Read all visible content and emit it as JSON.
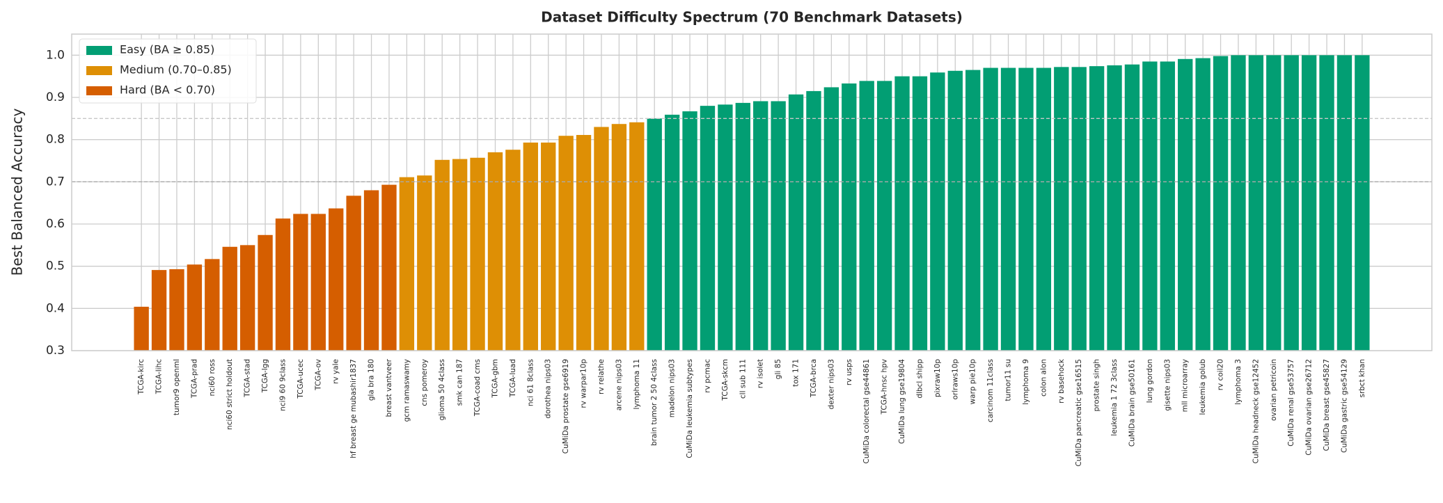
{
  "chart_data": {
    "type": "bar",
    "title": "Dataset Difficulty Spectrum (70 Benchmark Datasets)",
    "y_label": "Best Balanced Accuracy",
    "categories": [
      "TCGA-kirc",
      "TCGA-lihc",
      "tumor9 openml",
      "TCGA-prad",
      "nci60 ross",
      "nci60 strict holdout",
      "TCGA-stad",
      "TCGA-lgg",
      "nci9 60 9class",
      "TCGA-ucec",
      "TCGA-ov",
      "rv yale",
      "hf breast ge mubashir1837",
      "gla bra 180",
      "breast vantveer",
      "gcm ramaswamy",
      "cns pomeroy",
      "glioma 50 4class",
      "smk can 187",
      "TCGA-coad cms",
      "TCGA-gbm",
      "TCGA-luad",
      "nci 61 8class",
      "dorothea nips03",
      "CuMiDa prostate gse6919",
      "rv warpar10p",
      "rv relathe",
      "arcene nips03",
      "lymphoma 11",
      "brain tumor 2 50 4class",
      "madelon nips03",
      "CuMiDa leukemia subtypes",
      "rv pcmac",
      "TCGA-skcm",
      "cll sub 111",
      "rv isolet",
      "gli 85",
      "tox 171",
      "TCGA-brca",
      "dexter nips03",
      "rv usps",
      "CuMiDa colorectal gse44861",
      "TCGA-hnsc hpv",
      "CuMiDa lung gse19804",
      "dlbcl shipp",
      "pixraw10p",
      "orlraws10p",
      "warp pie10p",
      "carcinom 11class",
      "tumor11 su",
      "lymphoma 9",
      "colon alon",
      "rv basehock",
      "CuMiDa pancreatic gse16515",
      "prostate singh",
      "leukemia 1 72 3class",
      "CuMiDa brain gse50161",
      "lung gordon",
      "gisette nips03",
      "mll microarray",
      "leukemia golub",
      "rv coil20",
      "lymphoma 3",
      "CuMiDa headneck gse12452",
      "ovarian petricoin",
      "CuMiDa renal gse53757",
      "CuMiDa ovarian gse26712",
      "CuMiDa breast gse45827",
      "CuMiDa gastric gse54129",
      "srbct khan"
    ],
    "series": [
      {
        "name": "Easy (BA ≥ 0.85)",
        "color": "#029e73",
        "values": [
          null,
          null,
          null,
          null,
          null,
          null,
          null,
          null,
          null,
          null,
          null,
          null,
          null,
          null,
          null,
          null,
          null,
          null,
          null,
          null,
          null,
          null,
          null,
          null,
          null,
          null,
          null,
          null,
          null,
          0.85,
          0.859,
          0.867,
          0.88,
          0.883,
          0.887,
          0.891,
          0.891,
          0.907,
          0.915,
          0.924,
          0.933,
          0.939,
          0.939,
          0.95,
          0.95,
          0.959,
          0.963,
          0.965,
          0.97,
          0.97,
          0.97,
          0.97,
          0.972,
          0.972,
          0.974,
          0.976,
          0.978,
          0.985,
          0.985,
          0.991,
          0.993,
          0.998,
          1.0,
          1.0,
          1.0,
          1.0,
          1.0,
          1.0,
          1.0,
          1.0
        ]
      },
      {
        "name": "Medium (0.70–0.85)",
        "color": "#de8f05",
        "values": [
          null,
          null,
          null,
          null,
          null,
          null,
          null,
          null,
          null,
          null,
          null,
          null,
          null,
          null,
          null,
          0.711,
          0.715,
          0.752,
          0.754,
          0.757,
          0.77,
          0.776,
          0.793,
          0.793,
          0.809,
          0.811,
          0.83,
          0.837,
          0.841,
          null,
          null,
          null,
          null,
          null,
          null,
          null,
          null,
          null,
          null,
          null,
          null,
          null,
          null,
          null,
          null,
          null,
          null,
          null,
          null,
          null,
          null,
          null,
          null,
          null,
          null,
          null,
          null,
          null,
          null,
          null,
          null,
          null,
          null,
          null,
          null,
          null,
          null,
          null,
          null,
          null
        ]
      },
      {
        "name": "Hard (BA < 0.70)",
        "color": "#d55e00",
        "values": [
          0.404,
          0.491,
          0.493,
          0.504,
          0.517,
          0.546,
          0.55,
          0.574,
          0.613,
          0.624,
          0.624,
          0.637,
          0.667,
          0.68,
          0.693,
          null,
          null,
          null,
          null,
          null,
          null,
          null,
          null,
          null,
          null,
          null,
          null,
          null,
          null,
          null,
          null,
          null,
          null,
          null,
          null,
          null,
          null,
          null,
          null,
          null,
          null,
          null,
          null,
          null,
          null,
          null,
          null,
          null,
          null,
          null,
          null,
          null,
          null,
          null,
          null,
          null,
          null,
          null,
          null,
          null,
          null,
          null,
          null,
          null,
          null,
          null,
          null,
          null,
          null,
          null
        ]
      }
    ],
    "reference_lines": [
      0.85,
      0.7
    ],
    "ylim": [
      0.3,
      1.05
    ],
    "yticks": [
      0.3,
      0.4,
      0.5,
      0.6,
      0.7,
      0.8,
      0.9,
      {
        "value": 1,
        "label": "1.0"
      }
    ],
    "grid": true,
    "legend": "upper-left"
  }
}
